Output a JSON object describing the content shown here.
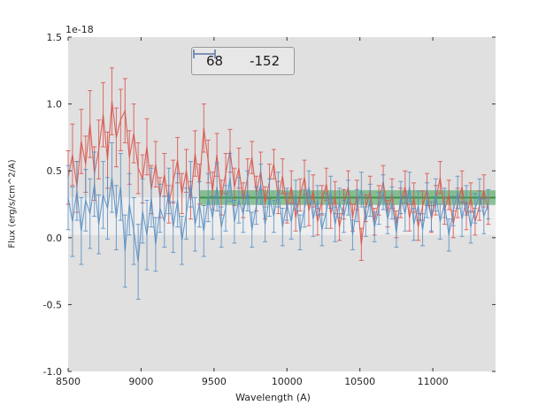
{
  "figure": {
    "background": "#ffffff",
    "axes_background": "#e0e0e0"
  },
  "chart_data": {
    "type": "line",
    "title": "",
    "xlabel": "Wavelength (A)",
    "ylabel": "Flux (erg/s/cm^2/A)",
    "offset_label": "1e-18",
    "xlim": [
      8500,
      11430
    ],
    "ylim": [
      -1.0,
      1.5
    ],
    "xticks": [
      8500,
      9000,
      9500,
      10000,
      10500,
      11000
    ],
    "xticklabels": [
      "8500",
      "9000",
      "9500",
      "10000",
      "10500",
      "11000"
    ],
    "yticks": [
      -1.0,
      -0.5,
      0.0,
      0.5,
      1.0,
      1.5
    ],
    "yticklabels": [
      "-1.0",
      "-0.5",
      "0.0",
      "0.5",
      "1.0",
      "1.5"
    ],
    "grid": false,
    "legend": {
      "position": "upper center",
      "entries": [
        {
          "label": "68",
          "color": "#d9544d"
        },
        {
          "label": "-152",
          "color": "#5a8fc2"
        }
      ]
    },
    "bands": [
      {
        "name": "white-reference-band",
        "x0": 8500,
        "x1": 11430,
        "y0": 0.02,
        "y1": 0.3,
        "color": "#ffffff",
        "opacity": 0.45,
        "center_line": false
      },
      {
        "name": "green-continuum-band",
        "x0": 9400,
        "x1": 11430,
        "y0": 0.245,
        "y1": 0.355,
        "color": "#3a9e4e",
        "opacity": 0.55,
        "center_line": true,
        "center_y": 0.3,
        "center_color": "#2e8b3d"
      }
    ],
    "x": [
      8500,
      8530,
      8560,
      8590,
      8620,
      8650,
      8680,
      8710,
      8740,
      8770,
      8800,
      8830,
      8860,
      8890,
      8920,
      8950,
      8980,
      9010,
      9040,
      9070,
      9100,
      9130,
      9160,
      9190,
      9220,
      9250,
      9280,
      9310,
      9340,
      9370,
      9400,
      9430,
      9460,
      9490,
      9520,
      9550,
      9580,
      9610,
      9640,
      9670,
      9700,
      9730,
      9760,
      9790,
      9820,
      9850,
      9880,
      9910,
      9940,
      9970,
      10000,
      10030,
      10060,
      10090,
      10120,
      10150,
      10180,
      10210,
      10240,
      10270,
      10300,
      10330,
      10360,
      10390,
      10420,
      10450,
      10480,
      10510,
      10540,
      10570,
      10600,
      10630,
      10660,
      10690,
      10720,
      10750,
      10780,
      10810,
      10840,
      10870,
      10900,
      10930,
      10960,
      10990,
      11020,
      11050,
      11080,
      11110,
      11140,
      11170,
      11200,
      11230,
      11260,
      11290,
      11320,
      11350,
      11380
    ],
    "series": [
      {
        "name": "68",
        "color": "#d9544d",
        "y": [
          0.45,
          0.62,
          0.38,
          0.72,
          0.55,
          0.85,
          0.48,
          0.66,
          0.92,
          0.58,
          1.02,
          0.75,
          0.88,
          0.95,
          0.6,
          0.78,
          0.52,
          0.44,
          0.68,
          0.36,
          0.55,
          0.3,
          0.47,
          0.25,
          0.42,
          0.58,
          0.33,
          0.5,
          0.28,
          0.63,
          0.4,
          0.82,
          0.57,
          0.35,
          0.62,
          0.3,
          0.48,
          0.65,
          0.38,
          0.52,
          0.28,
          0.45,
          0.6,
          0.33,
          0.5,
          0.26,
          0.42,
          0.55,
          0.3,
          0.46,
          0.22,
          0.38,
          0.15,
          0.32,
          0.45,
          0.2,
          0.35,
          0.12,
          0.28,
          0.4,
          0.18,
          0.3,
          0.08,
          0.25,
          0.38,
          0.15,
          0.32,
          -0.05,
          0.22,
          0.35,
          0.12,
          0.28,
          0.42,
          0.18,
          0.33,
          0.1,
          0.26,
          0.38,
          0.15,
          0.3,
          0.08,
          0.24,
          0.36,
          0.14,
          0.28,
          0.45,
          0.2,
          0.32,
          0.1,
          0.26,
          0.38,
          0.16,
          0.3,
          0.12,
          0.24,
          0.35,
          0.2
        ],
        "yerr": [
          0.2,
          0.23,
          0.19,
          0.24,
          0.21,
          0.25,
          0.2,
          0.22,
          0.24,
          0.21,
          0.25,
          0.22,
          0.23,
          0.24,
          0.2,
          0.22,
          0.19,
          0.18,
          0.21,
          0.18,
          0.17,
          0.15,
          0.16,
          0.14,
          0.16,
          0.17,
          0.15,
          0.16,
          0.14,
          0.17,
          0.15,
          0.18,
          0.16,
          0.14,
          0.16,
          0.13,
          0.15,
          0.16,
          0.14,
          0.15,
          0.13,
          0.14,
          0.12,
          0.13,
          0.14,
          0.12,
          0.13,
          0.11,
          0.12,
          0.13,
          0.11,
          0.12,
          0.1,
          0.12,
          0.13,
          0.11,
          0.12,
          0.1,
          0.11,
          0.12,
          0.11,
          0.12,
          0.1,
          0.11,
          0.12,
          0.1,
          0.11,
          0.12,
          0.1,
          0.11,
          0.1,
          0.11,
          0.12,
          0.1,
          0.11,
          0.1,
          0.11,
          0.12,
          0.1,
          0.11,
          0.1,
          0.11,
          0.12,
          0.1,
          0.11,
          0.12,
          0.1,
          0.11,
          0.1,
          0.11,
          0.12,
          0.1,
          0.11,
          0.1,
          0.11,
          0.12,
          0.1
        ]
      },
      {
        "name": "-152",
        "color": "#5a8fc2",
        "y": [
          0.3,
          0.12,
          0.35,
          0.05,
          0.28,
          0.18,
          0.4,
          0.1,
          0.32,
          0.22,
          0.45,
          0.15,
          0.38,
          -0.1,
          0.25,
          0.05,
          -0.18,
          0.2,
          0.02,
          0.3,
          -0.05,
          0.22,
          0.12,
          0.35,
          0.08,
          0.28,
          -0.02,
          0.18,
          0.4,
          0.1,
          0.25,
          0.05,
          0.3,
          0.15,
          0.38,
          0.08,
          0.22,
          0.45,
          0.12,
          0.28,
          0.18,
          0.35,
          0.06,
          0.24,
          0.4,
          0.1,
          0.3,
          0.16,
          0.36,
          0.08,
          0.25,
          0.12,
          0.32,
          0.04,
          0.22,
          0.38,
          0.14,
          0.28,
          0.06,
          0.2,
          0.34,
          0.1,
          0.26,
          0.16,
          0.3,
          0.02,
          0.24,
          0.36,
          0.12,
          0.28,
          0.08,
          0.22,
          0.34,
          0.14,
          0.26,
          0.04,
          0.3,
          0.18,
          0.38,
          0.1,
          0.24,
          0.06,
          0.28,
          0.16,
          0.32,
          0.12,
          0.26,
          0.02,
          0.2,
          0.34,
          0.14,
          0.28,
          0.08,
          0.22,
          0.32,
          0.16,
          0.25
        ],
        "yerr": [
          0.24,
          0.26,
          0.22,
          0.25,
          0.23,
          0.26,
          0.24,
          0.22,
          0.25,
          0.23,
          0.26,
          0.24,
          0.25,
          0.27,
          0.23,
          0.25,
          0.28,
          0.24,
          0.26,
          0.22,
          0.2,
          0.18,
          0.19,
          0.17,
          0.19,
          0.2,
          0.18,
          0.19,
          0.17,
          0.2,
          0.17,
          0.19,
          0.18,
          0.16,
          0.18,
          0.15,
          0.17,
          0.18,
          0.16,
          0.17,
          0.14,
          0.15,
          0.13,
          0.14,
          0.15,
          0.13,
          0.14,
          0.12,
          0.13,
          0.14,
          0.12,
          0.13,
          0.11,
          0.13,
          0.14,
          0.12,
          0.13,
          0.11,
          0.12,
          0.13,
          0.12,
          0.13,
          0.11,
          0.12,
          0.13,
          0.11,
          0.12,
          0.13,
          0.11,
          0.12,
          0.11,
          0.12,
          0.13,
          0.11,
          0.12,
          0.11,
          0.12,
          0.13,
          0.11,
          0.12,
          0.11,
          0.12,
          0.13,
          0.11,
          0.12,
          0.13,
          0.11,
          0.12,
          0.11,
          0.12,
          0.13,
          0.11,
          0.12,
          0.11,
          0.12,
          0.13,
          0.11
        ]
      }
    ]
  }
}
